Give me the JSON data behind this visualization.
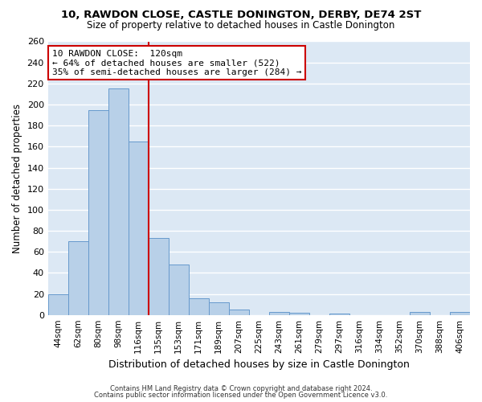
{
  "title": "10, RAWDON CLOSE, CASTLE DONINGTON, DERBY, DE74 2ST",
  "subtitle": "Size of property relative to detached houses in Castle Donington",
  "xlabel": "Distribution of detached houses by size in Castle Donington",
  "ylabel": "Number of detached properties",
  "bar_color": "#b8d0e8",
  "bar_edge_color": "#6699cc",
  "background_color": "#dce8f4",
  "grid_color": "white",
  "categories": [
    "44sqm",
    "62sqm",
    "80sqm",
    "98sqm",
    "116sqm",
    "135sqm",
    "153sqm",
    "171sqm",
    "189sqm",
    "207sqm",
    "225sqm",
    "243sqm",
    "261sqm",
    "279sqm",
    "297sqm",
    "316sqm",
    "334sqm",
    "352sqm",
    "370sqm",
    "388sqm",
    "406sqm"
  ],
  "values": [
    20,
    70,
    195,
    215,
    165,
    73,
    48,
    16,
    12,
    5,
    0,
    3,
    2,
    0,
    1,
    0,
    0,
    0,
    3,
    0,
    3
  ],
  "ylim": [
    0,
    260
  ],
  "yticks": [
    0,
    20,
    40,
    60,
    80,
    100,
    120,
    140,
    160,
    180,
    200,
    220,
    240,
    260
  ],
  "vline_color": "#cc0000",
  "annotation_title": "10 RAWDON CLOSE:  120sqm",
  "annotation_line1": "← 64% of detached houses are smaller (522)",
  "annotation_line2": "35% of semi-detached houses are larger (284) →",
  "annotation_box_edge": "#cc0000",
  "footer_line1": "Contains HM Land Registry data © Crown copyright and database right 2024.",
  "footer_line2": "Contains public sector information licensed under the Open Government Licence v3.0."
}
